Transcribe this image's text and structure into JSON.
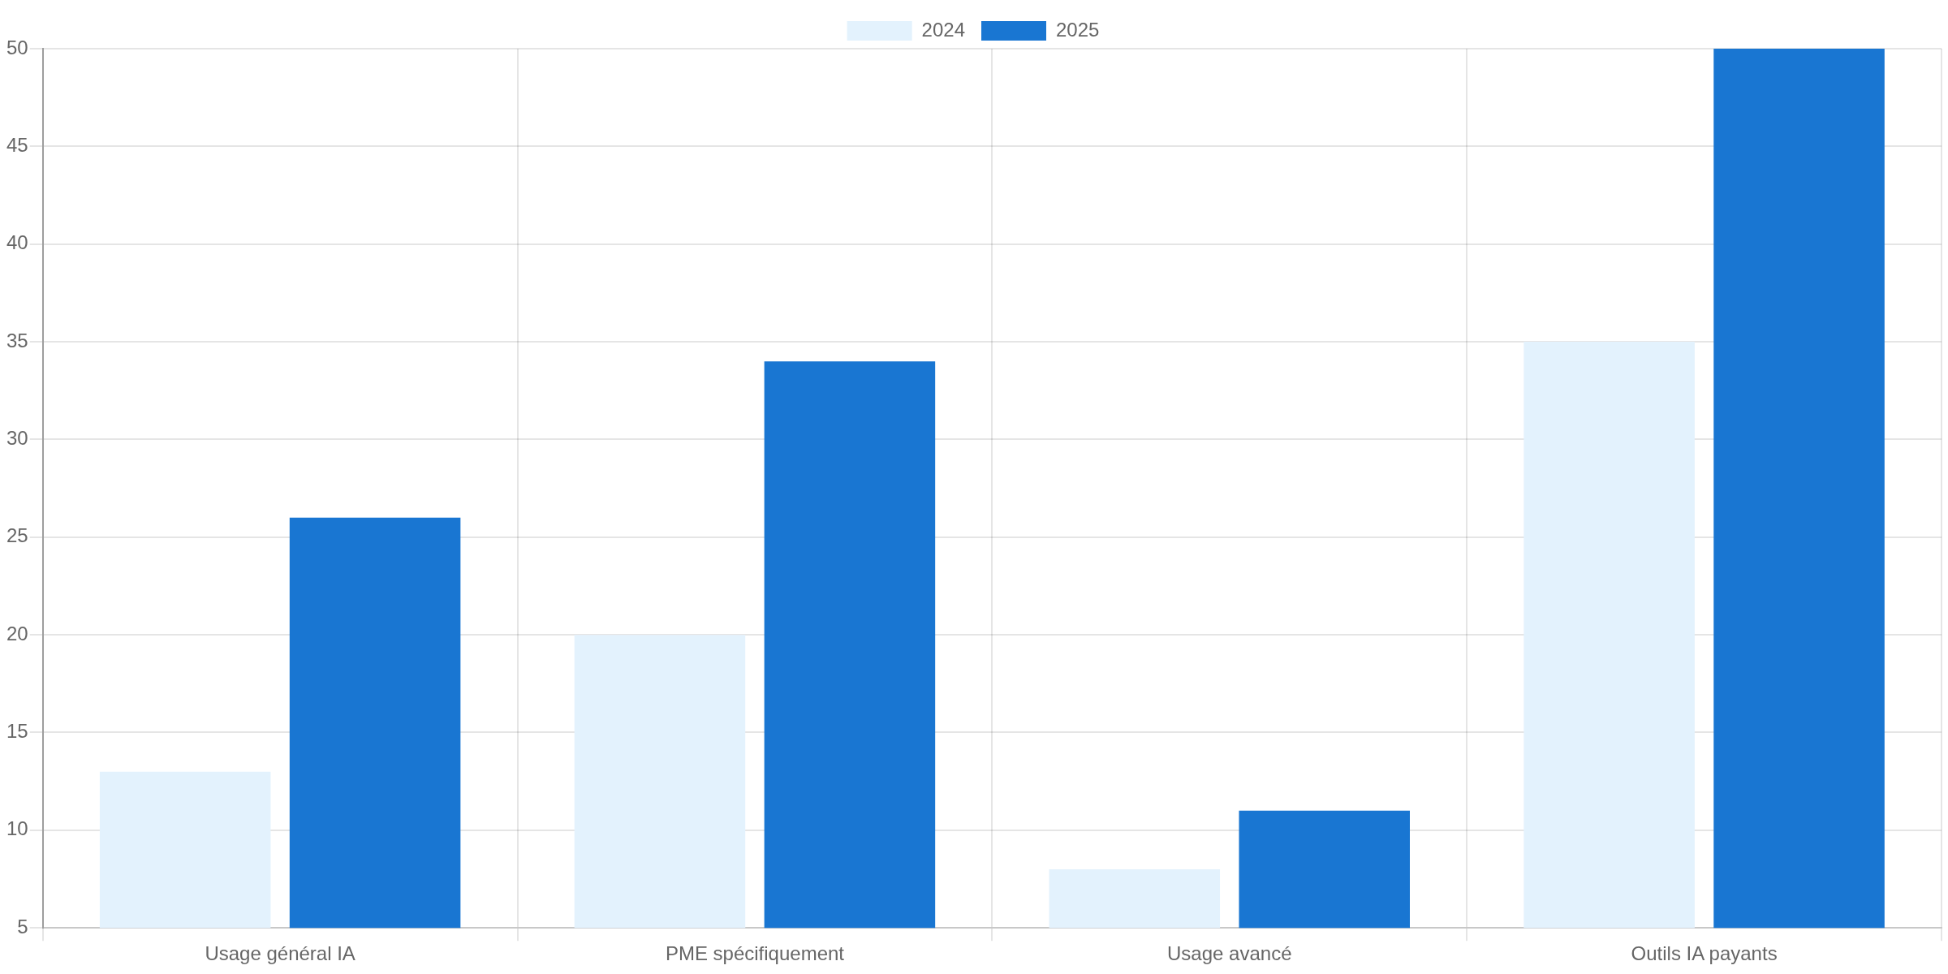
{
  "chart_data": {
    "type": "bar",
    "categories": [
      "Usage général IA",
      "PME spécifiquement",
      "Usage avancé",
      "Outils IA payants"
    ],
    "series": [
      {
        "name": "2024",
        "color": "#e3f2fd",
        "values": [
          13,
          20,
          8,
          35
        ]
      },
      {
        "name": "2025",
        "color": "#1976d2",
        "values": [
          26,
          34,
          11,
          50
        ]
      }
    ],
    "ylim": [
      5,
      50
    ],
    "yticks": [
      5,
      10,
      15,
      20,
      25,
      30,
      35,
      40,
      45,
      50
    ],
    "grid": true,
    "legend": "top"
  }
}
